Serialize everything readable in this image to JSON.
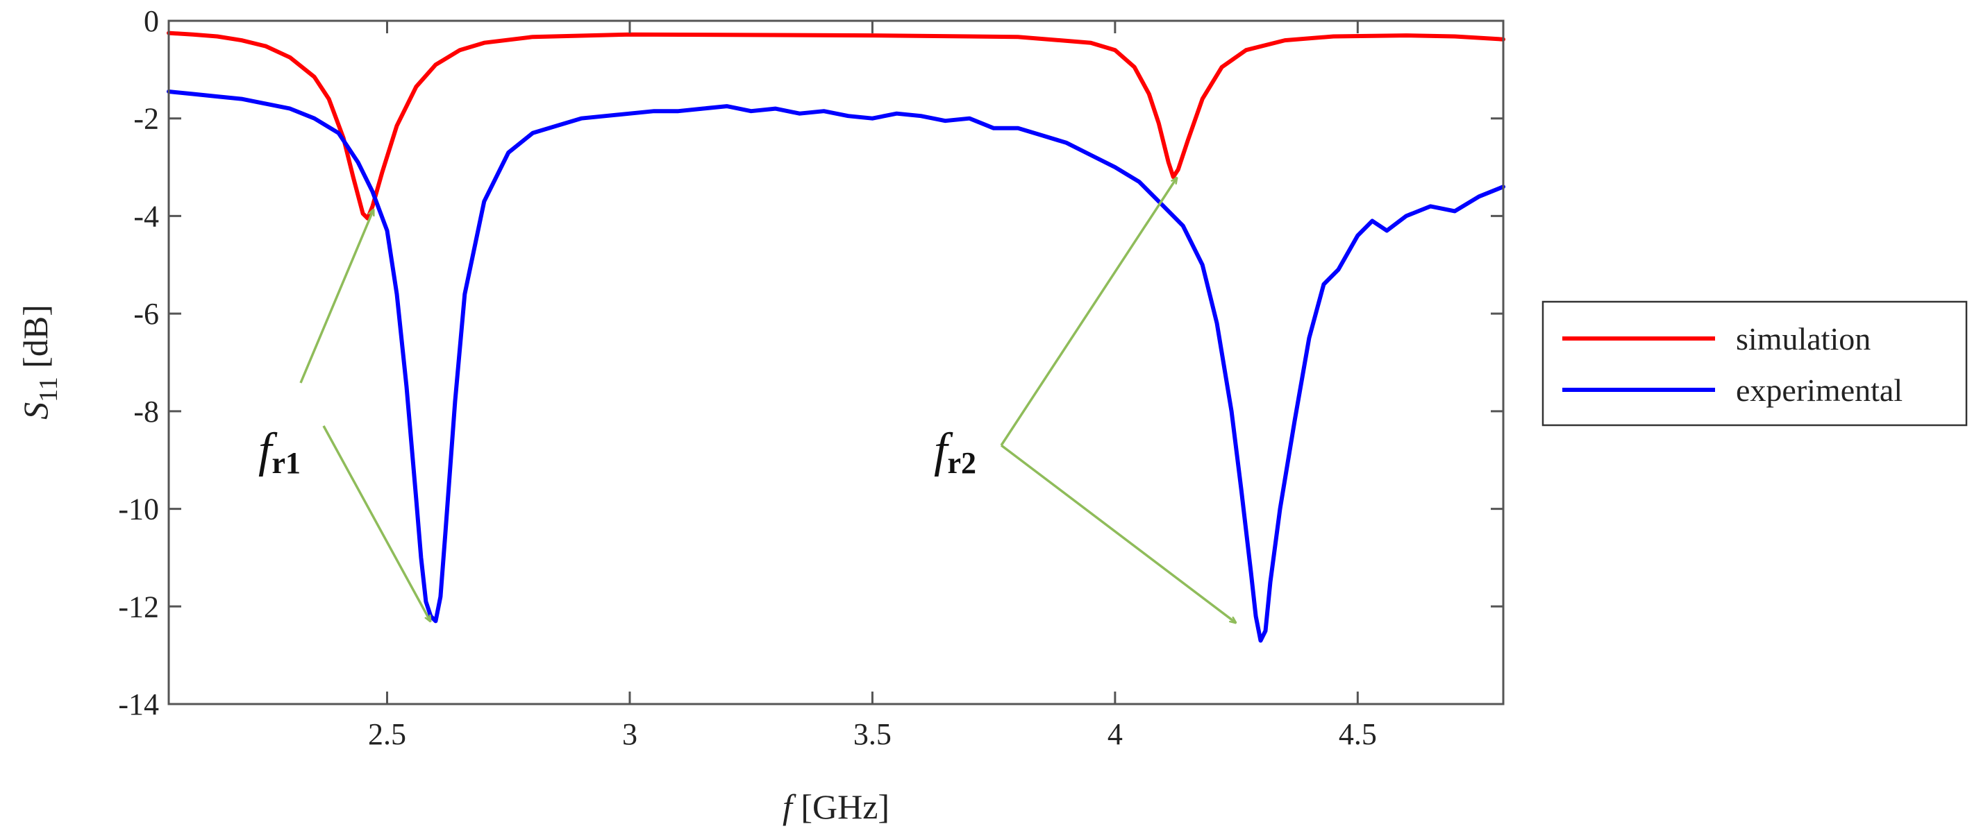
{
  "chart_data": {
    "type": "line",
    "xlabel": {
      "var": "f",
      "unit": " [GHz]"
    },
    "ylabel": {
      "var": "S",
      "sub": "11",
      "unit": " [dB]"
    },
    "xlim": [
      2.05,
      4.8
    ],
    "ylim": [
      -14,
      0
    ],
    "xticks": [
      2.5,
      3,
      3.5,
      4,
      4.5
    ],
    "xtick_labels": [
      "2.5",
      "3",
      "3.5",
      "4",
      "4.5"
    ],
    "yticks": [
      0,
      -2,
      -4,
      -6,
      -8,
      -10,
      -12,
      -14
    ],
    "ytick_labels": [
      "0",
      "-2",
      "-4",
      "-6",
      "-8",
      "-10",
      "-12",
      "-14"
    ],
    "grid": false,
    "legend_position": "right, outside plot",
    "series": [
      {
        "name": "simulation",
        "color": "#ff0000",
        "x": [
          2.05,
          2.1,
          2.15,
          2.2,
          2.25,
          2.3,
          2.35,
          2.38,
          2.41,
          2.43,
          2.45,
          2.46,
          2.47,
          2.49,
          2.52,
          2.56,
          2.6,
          2.65,
          2.7,
          2.8,
          3.0,
          3.5,
          3.8,
          3.95,
          4.0,
          4.04,
          4.07,
          4.09,
          4.11,
          4.12,
          4.13,
          4.15,
          4.18,
          4.22,
          4.27,
          4.35,
          4.45,
          4.6,
          4.7,
          4.8
        ],
        "y": [
          -0.25,
          -0.28,
          -0.32,
          -0.4,
          -0.52,
          -0.75,
          -1.15,
          -1.6,
          -2.4,
          -3.2,
          -3.95,
          -4.05,
          -3.8,
          -3.1,
          -2.15,
          -1.35,
          -0.9,
          -0.6,
          -0.45,
          -0.33,
          -0.28,
          -0.3,
          -0.33,
          -0.45,
          -0.6,
          -0.95,
          -1.5,
          -2.1,
          -2.9,
          -3.2,
          -3.05,
          -2.45,
          -1.6,
          -0.95,
          -0.6,
          -0.4,
          -0.32,
          -0.3,
          -0.32,
          -0.38
        ]
      },
      {
        "name": "experimental",
        "color": "#0000ff",
        "x": [
          2.05,
          2.1,
          2.15,
          2.2,
          2.25,
          2.3,
          2.35,
          2.4,
          2.44,
          2.47,
          2.5,
          2.52,
          2.54,
          2.56,
          2.57,
          2.58,
          2.59,
          2.6,
          2.61,
          2.62,
          2.64,
          2.66,
          2.7,
          2.75,
          2.8,
          2.85,
          2.9,
          2.95,
          3.0,
          3.05,
          3.1,
          3.15,
          3.2,
          3.25,
          3.3,
          3.35,
          3.4,
          3.45,
          3.5,
          3.55,
          3.6,
          3.65,
          3.7,
          3.75,
          3.8,
          3.85,
          3.9,
          3.95,
          4.0,
          4.05,
          4.1,
          4.14,
          4.18,
          4.21,
          4.24,
          4.26,
          4.28,
          4.29,
          4.3,
          4.31,
          4.32,
          4.34,
          4.37,
          4.4,
          4.43,
          4.46,
          4.5,
          4.53,
          4.56,
          4.6,
          4.65,
          4.7,
          4.75,
          4.8
        ],
        "y": [
          -1.45,
          -1.5,
          -1.55,
          -1.6,
          -1.7,
          -1.8,
          -2.0,
          -2.3,
          -2.9,
          -3.5,
          -4.3,
          -5.6,
          -7.5,
          -9.8,
          -11.0,
          -11.9,
          -12.2,
          -12.3,
          -11.8,
          -10.5,
          -7.8,
          -5.6,
          -3.7,
          -2.7,
          -2.3,
          -2.15,
          -2.0,
          -1.95,
          -1.9,
          -1.85,
          -1.85,
          -1.8,
          -1.75,
          -1.85,
          -1.8,
          -1.9,
          -1.85,
          -1.95,
          -2.0,
          -1.9,
          -1.95,
          -2.05,
          -2.0,
          -2.2,
          -2.2,
          -2.35,
          -2.5,
          -2.75,
          -3.0,
          -3.3,
          -3.8,
          -4.2,
          -5.0,
          -6.2,
          -8.0,
          -9.6,
          -11.3,
          -12.2,
          -12.7,
          -12.5,
          -11.5,
          -10.0,
          -8.2,
          -6.5,
          -5.4,
          -5.1,
          -4.4,
          -4.1,
          -4.3,
          -4.0,
          -3.8,
          -3.9,
          -3.6,
          -3.4
        ]
      }
    ],
    "annotations": [
      {
        "text": "f",
        "sub": "r1"
      },
      {
        "text": "f",
        "sub": "r2"
      }
    ]
  }
}
